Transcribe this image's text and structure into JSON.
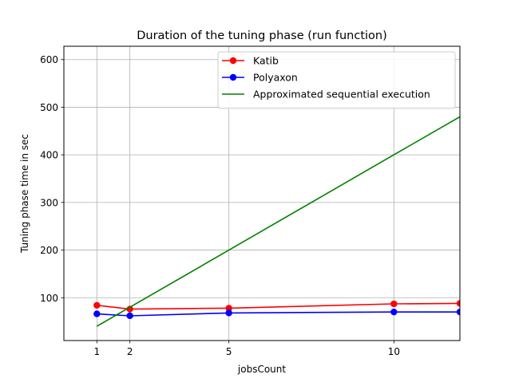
{
  "chart_data": {
    "type": "line",
    "title": "Duration of the tuning phase (run function)",
    "xlabel": "jobsCount",
    "ylabel": "Tuning phase time in sec",
    "xlim": [
      0,
      12
    ],
    "ylim": [
      10,
      628
    ],
    "xticks": [
      1,
      2,
      5,
      10
    ],
    "yticks": [
      100,
      200,
      300,
      400,
      500,
      600
    ],
    "grid": true,
    "legend_position": "top-right",
    "series": [
      {
        "name": "Katib",
        "color": "#ff0000",
        "marker": "circle",
        "x": [
          1,
          2,
          5,
          10,
          12
        ],
        "y": [
          84,
          76,
          78,
          87,
          88
        ]
      },
      {
        "name": "Polyaxon",
        "color": "#0000ff",
        "marker": "circle",
        "x": [
          1,
          2,
          5,
          10,
          12
        ],
        "y": [
          66,
          62,
          68,
          70,
          70
        ]
      },
      {
        "name": "Approximated sequential execution",
        "color": "#008000",
        "marker": "none",
        "x": [
          1,
          2,
          5,
          10,
          12
        ],
        "y": [
          40,
          80,
          200,
          400,
          480
        ]
      }
    ]
  }
}
